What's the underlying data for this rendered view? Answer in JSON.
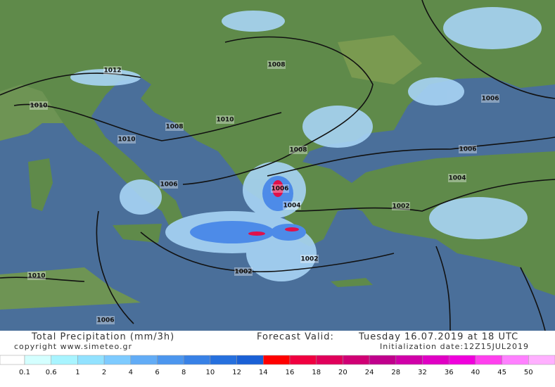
{
  "header": {
    "title": "Total Precipitation (mm/3h)",
    "forecast_label": "Forecast Valid:",
    "forecast_time": "Tuesday 16.07.2019 at 18 UTC",
    "copyright": "copyright www.simeteo.gr",
    "initialization": "Initialization date:12Z15JUL2019"
  },
  "isobars": [
    "1012",
    "1010",
    "1008",
    "1010",
    "1010",
    "1008",
    "1008",
    "1006",
    "1006",
    "1004",
    "1002",
    "1004",
    "1006",
    "1006",
    "1002",
    "1002",
    "1010",
    "1006"
  ],
  "legend": {
    "labels": [
      "0.1",
      "0.6",
      "1",
      "2",
      "4",
      "6",
      "8",
      "10",
      "12",
      "14",
      "16",
      "18",
      "20",
      "24",
      "28",
      "32",
      "36",
      "40",
      "45",
      "50"
    ]
  }
}
